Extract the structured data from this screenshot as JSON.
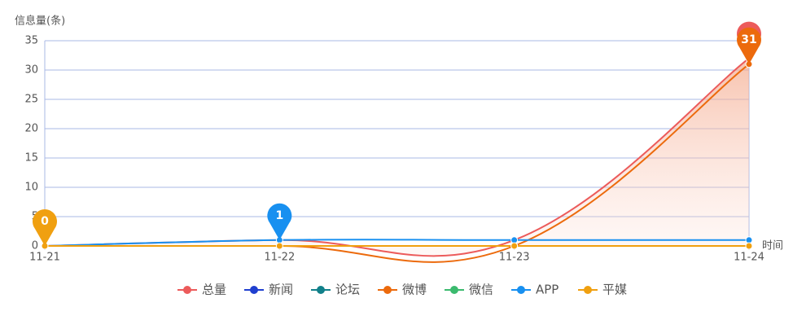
{
  "chart_data": {
    "type": "line",
    "y_axis_label": "信息量(条)",
    "x_axis_label": "时间",
    "categories": [
      "11-21",
      "11-22",
      "11-23",
      "11-24"
    ],
    "ylim": [
      0,
      35
    ],
    "yticks": [
      0,
      5,
      10,
      15,
      20,
      25,
      30,
      35
    ],
    "grid": true,
    "legend": "bottom",
    "series": [
      {
        "name": "总量",
        "color": "#ec5b5b",
        "values": [
          0,
          1,
          1,
          32
        ],
        "area": true,
        "pin": "max"
      },
      {
        "name": "新闻",
        "color": "#1f3fcf",
        "values": [
          0,
          0,
          0,
          0
        ]
      },
      {
        "name": "论坛",
        "color": "#11808a",
        "values": [
          0,
          0,
          0,
          0
        ]
      },
      {
        "name": "微博",
        "color": "#ec6a0c",
        "values": [
          0,
          0,
          0,
          31
        ],
        "pin": "max",
        "pin_label": "31"
      },
      {
        "name": "微信",
        "color": "#3bba6e",
        "values": [
          0,
          0,
          0,
          0
        ]
      },
      {
        "name": "APP",
        "color": "#1890f0",
        "values": [
          0,
          1,
          1,
          1
        ],
        "pin": "max",
        "pin_label": "1"
      },
      {
        "name": "平媒",
        "color": "#f0a010",
        "values": [
          0,
          0,
          0,
          0
        ],
        "pin": "max",
        "pin_label": "0"
      }
    ]
  }
}
